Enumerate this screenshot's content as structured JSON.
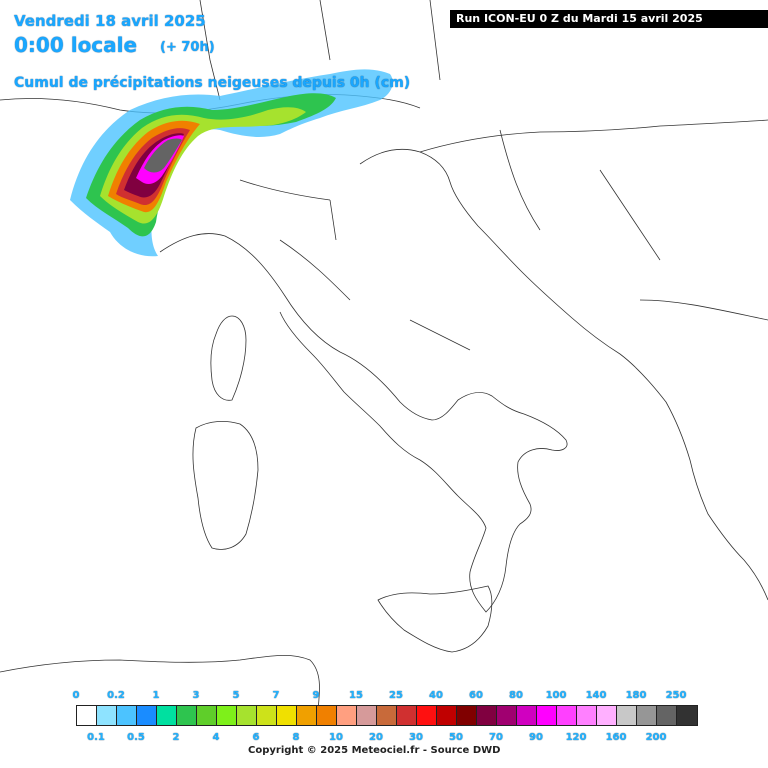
{
  "header": {
    "date": "Vendredi 18 avril 2025",
    "time": "0:00 locale",
    "lead": "(+ 70h)",
    "field": "Cumul de précipitations neigeuses depuis 0h (cm)",
    "run": "Run ICON-EU 0 Z du Mardi 15 avril 2025"
  },
  "legend": {
    "top_labels": [
      "0",
      "0.2",
      "1",
      "3",
      "5",
      "7",
      "9",
      "15",
      "25",
      "40",
      "60",
      "80",
      "100",
      "140",
      "180",
      "250"
    ],
    "bottom_labels": [
      "0.1",
      "0.5",
      "2",
      "4",
      "6",
      "8",
      "10",
      "20",
      "30",
      "50",
      "70",
      "90",
      "120",
      "160",
      "200"
    ],
    "colors": [
      "#ffffff",
      "#8ee3ff",
      "#4cc3ff",
      "#1a8cff",
      "#00e0a0",
      "#2ec44f",
      "#5fce2a",
      "#7ef01a",
      "#a6e22e",
      "#cde21a",
      "#f0e000",
      "#f0a000",
      "#f08000",
      "#ff9f80",
      "#d69a9a",
      "#c86a3a",
      "#d03030",
      "#ff1010",
      "#c00000",
      "#800000",
      "#800040",
      "#a00070",
      "#d000c0",
      "#ff00ff",
      "#ff40ff",
      "#ff80ff",
      "#ffb0ff",
      "#c8c8c8",
      "#969696",
      "#646464",
      "#323232"
    ]
  },
  "copyright": "Copyright © 2025 Meteociel.fr - Source DWD"
}
